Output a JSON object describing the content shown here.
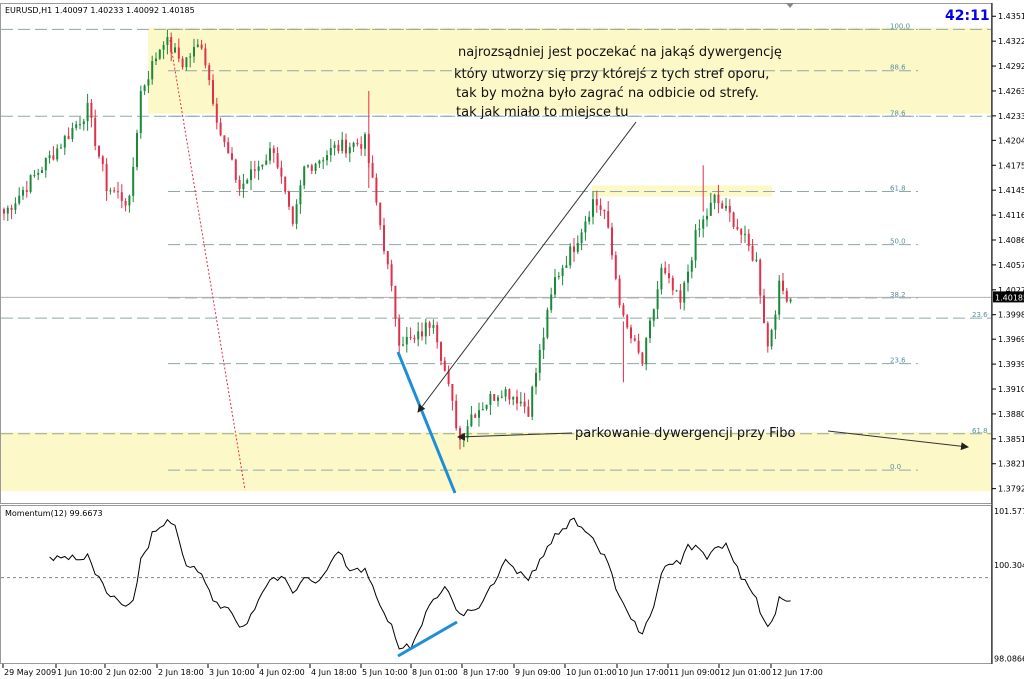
{
  "header": {
    "symbol_line": "EURUSD,H1  1.40097 1.40233 1.40092 1.40185",
    "clock": "42:11"
  },
  "price_axis": {
    "ticks": [
      "1.43515",
      "1.43220",
      "1.42925",
      "1.42630",
      "1.42335",
      "1.42045",
      "1.41750",
      "1.41455",
      "1.41160",
      "1.40865",
      "1.40570",
      "1.40275",
      "1.39980",
      "1.39690",
      "1.39395",
      "1.39100",
      "1.38805",
      "1.38510",
      "1.38215",
      "1.37920"
    ],
    "current_price": "1.40185",
    "range": [
      1.3775,
      1.4366
    ]
  },
  "fibo_levels": [
    {
      "label": "100.0",
      "price": 1.4336
    },
    {
      "label": "88.6",
      "price": 1.4287
    },
    {
      "label": "78.6",
      "price": 1.4233
    },
    {
      "label": "61.8",
      "price": 1.4144
    },
    {
      "label": "50.0",
      "price": 1.4081
    },
    {
      "label": "38.2",
      "price": 1.4018
    },
    {
      "label": "23.6",
      "price": 1.394
    },
    {
      "label": "0.0",
      "price": 1.3814
    }
  ],
  "fibo_levels_b": [
    {
      "label": "23.6",
      "price": 1.3994
    },
    {
      "label": "61.8",
      "price": 1.3857
    }
  ],
  "zones": [
    {
      "name": "top-resistance-zone",
      "from": 1.4236,
      "to": 1.4338,
      "color": "#fdf8c8"
    },
    {
      "name": "mid-resistance-zone",
      "from": 1.4138,
      "to": 1.4151,
      "color": "#fdf8c8"
    },
    {
      "name": "bottom-support-zone",
      "from": 1.3789,
      "to": 1.3859,
      "color": "#fdf8c8"
    }
  ],
  "annotations": {
    "main_text": [
      "najrozsądniej jest poczekać na jakąś dywergencję",
      "który utworzy się przy którejś z tych stref oporu,",
      "tak by można było zagrać na odbicie od strefy.",
      "tak jak miało to miejsce tu"
    ],
    "fibo_text": "parkowanie dywergencji przy Fibo"
  },
  "momentum": {
    "title": "Momentum(12) 99.6673",
    "ticks": [
      "101.5772",
      "100.3048",
      "98.0866"
    ],
    "range": [
      98.0,
      101.65
    ],
    "reference_level": 100.0
  },
  "time_axis": {
    "labels": [
      "29 May 2009",
      "1 Jun 10:00",
      "2 Jun 02:00",
      "2 Jun 18:00",
      "3 Jun 10:00",
      "4 Jun 02:00",
      "4 Jun 18:00",
      "5 Jun 10:00",
      "8 Jun 01:00",
      "8 Jun 17:00",
      "9 Jun 09:00",
      "10 Jun 01:00",
      "10 Jun 17:00",
      "11 Jun 09:00",
      "12 Jun 01:00",
      "12 Jun 17:00"
    ]
  },
  "colors": {
    "bull_candle": "#1a8a3a",
    "bear_candle": "#e0304a",
    "divergence_line": "#1e8fd6",
    "grid_dash": "#8fa8a8",
    "fibo_label": "#5a8fa0"
  },
  "chart_data": {
    "type": "candlestick",
    "symbol": "EURUSD",
    "timeframe": "H1",
    "x": "bar index",
    "ohlc_control_points": [
      {
        "bar": 0,
        "price": 1.4118
      },
      {
        "bar": 14,
        "price": 1.4195
      },
      {
        "bar": 22,
        "price": 1.4241
      },
      {
        "bar": 27,
        "price": 1.415
      },
      {
        "bar": 33,
        "price": 1.413
      },
      {
        "bar": 36,
        "price": 1.4262
      },
      {
        "bar": 42,
        "price": 1.4325
      },
      {
        "bar": 47,
        "price": 1.4296
      },
      {
        "bar": 52,
        "price": 1.432
      },
      {
        "bar": 57,
        "price": 1.4212
      },
      {
        "bar": 62,
        "price": 1.4148
      },
      {
        "bar": 71,
        "price": 1.4196
      },
      {
        "bar": 76,
        "price": 1.4098
      },
      {
        "bar": 79,
        "price": 1.4171
      },
      {
        "bar": 87,
        "price": 1.4195
      },
      {
        "bar": 95,
        "price": 1.4203
      },
      {
        "bar": 100,
        "price": 1.408
      },
      {
        "bar": 104,
        "price": 1.397
      },
      {
        "bar": 108,
        "price": 1.3966
      },
      {
        "bar": 113,
        "price": 1.3994
      },
      {
        "bar": 117,
        "price": 1.391
      },
      {
        "bar": 120,
        "price": 1.385
      },
      {
        "bar": 123,
        "price": 1.388
      },
      {
        "bar": 131,
        "price": 1.391
      },
      {
        "bar": 135,
        "price": 1.39
      },
      {
        "bar": 138,
        "price": 1.3886
      },
      {
        "bar": 145,
        "price": 1.404
      },
      {
        "bar": 150,
        "price": 1.408
      },
      {
        "bar": 155,
        "price": 1.4133
      },
      {
        "bar": 158,
        "price": 1.412
      },
      {
        "bar": 163,
        "price": 1.399
      },
      {
        "bar": 168,
        "price": 1.394
      },
      {
        "bar": 173,
        "price": 1.405
      },
      {
        "bar": 178,
        "price": 1.401
      },
      {
        "bar": 182,
        "price": 1.409
      },
      {
        "bar": 187,
        "price": 1.4135
      },
      {
        "bar": 192,
        "price": 1.411
      },
      {
        "bar": 198,
        "price": 1.406
      },
      {
        "bar": 201,
        "price": 1.396
      },
      {
        "bar": 204,
        "price": 1.403
      },
      {
        "bar": 207,
        "price": 1.4018
      }
    ]
  }
}
